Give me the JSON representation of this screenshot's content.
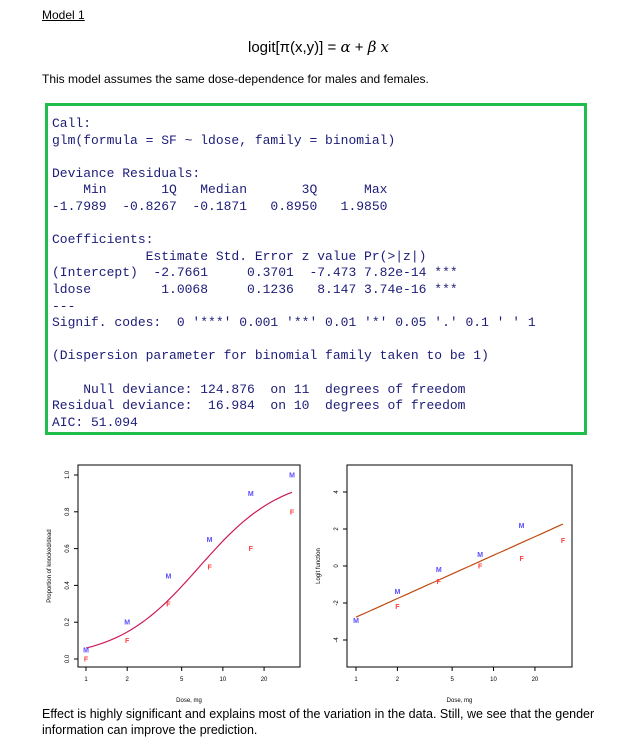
{
  "heading": "Model 1",
  "formula": {
    "lhs": "logit[π(x,y)] = ",
    "alpha": "α",
    "plus": " + ",
    "beta": "β",
    "x": "x"
  },
  "intro": "This model assumes the same dose-dependence for males and females.",
  "r_output": [
    "Call:",
    "glm(formula = SF ~ ldose, family = binomial)",
    "",
    "Deviance Residuals:",
    "    Min       1Q   Median       3Q      Max  ",
    "-1.7989  -0.8267  -0.1871   0.8950   1.9850  ",
    "",
    "Coefficients:",
    "            Estimate Std. Error z value Pr(>|z|)    ",
    "(Intercept)  -2.7661     0.3701  -7.473 7.82e-14 ***",
    "ldose         1.0068     0.1236   8.147 3.74e-16 ***",
    "---",
    "Signif. codes:  0 '***' 0.001 '**' 0.01 '*' 0.05 '.' 0.1 ' ' 1",
    "",
    "(Dispersion parameter for binomial family taken to be 1)",
    "",
    "    Null deviance: 124.876  on 11  degrees of freedom",
    "Residual deviance:  16.984  on 10  degrees of freedom",
    "AIC: 51.094"
  ],
  "colors": {
    "box_border": "#1ebd4c",
    "code_text": "#1c1c78",
    "male": "#5a4dff",
    "female": "#ff3b3b",
    "curve": "#cc1a5a",
    "line": "#c04a10"
  },
  "chart_data": [
    {
      "type": "scatter",
      "xlabel": "Dose, mg",
      "ylabel": "Proportion of knocked/dead",
      "x_scale": "log",
      "xticks": [
        1,
        2,
        5,
        10,
        20
      ],
      "yticks": [
        "0.0",
        "0.2",
        "0.4",
        "0.6",
        "0.8",
        "1.0"
      ],
      "ylim": [
        0,
        1
      ],
      "dose": [
        1,
        2,
        4,
        8,
        16,
        32
      ],
      "series": [
        {
          "name": "M",
          "values": [
            0.05,
            0.2,
            0.45,
            0.65,
            0.9,
            1.0
          ]
        },
        {
          "name": "F",
          "values": [
            0.0,
            0.1,
            0.3,
            0.5,
            0.6,
            0.8
          ]
        }
      ],
      "fit": {
        "intercept": -2.7661,
        "slope": 1.0068,
        "predictor": "log2(dose)",
        "link": "logit"
      }
    },
    {
      "type": "scatter",
      "xlabel": "Dose, mg",
      "ylabel": "Logit function",
      "x_scale": "log",
      "xticks": [
        1,
        2,
        5,
        10,
        20
      ],
      "yticks": [
        "-4",
        "-2",
        "0",
        "2",
        "4"
      ],
      "ylim": [
        -5.5,
        5.5
      ],
      "dose": [
        1,
        2,
        4,
        8,
        16,
        32
      ],
      "series": [
        {
          "name": "M",
          "values": [
            -2.94,
            -1.39,
            -0.2,
            0.62,
            2.2,
            null
          ]
        },
        {
          "name": "F",
          "values": [
            null,
            -2.2,
            -0.85,
            0.0,
            0.41,
            1.39
          ]
        }
      ],
      "fit": {
        "intercept": -2.7661,
        "slope": 1.0068,
        "predictor": "log2(dose)"
      }
    }
  ],
  "footer": "Effect is highly significant and explains most of the variation in the data. Still, we see that the gender information can improve the prediction."
}
